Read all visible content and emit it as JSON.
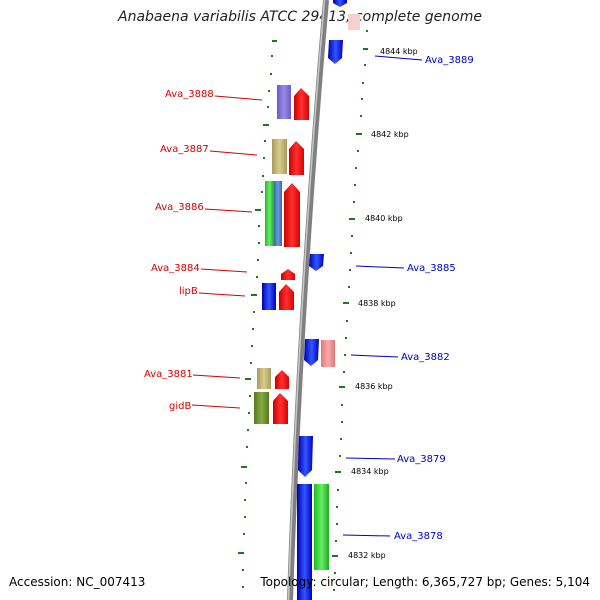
{
  "title": "Anabaena variabilis ATCC 29413, complete genome",
  "footer": {
    "accession": "Accession: NC_007413",
    "summary": "Topology: circular; Length: 6,365,727 bp; Genes: 5,104"
  },
  "colors": {
    "left_label": "#d40000",
    "right_label": "#0000c8",
    "backbone": "#888888",
    "tick": "#1a7a1a"
  },
  "ticks": [
    "4844 kbp",
    "4842 kbp",
    "4840 kbp",
    "4838 kbp",
    "4836 kbp",
    "4834 kbp",
    "4832 kbp"
  ],
  "left_genes": [
    "Ava_3888",
    "Ava_3887",
    "Ava_3886",
    "Ava_3884",
    "lipB",
    "Ava_3881",
    "gidB"
  ],
  "right_genes": [
    "Ava_3889",
    "Ava_3885",
    "Ava_3882",
    "Ava_3879",
    "Ava_3878"
  ]
}
